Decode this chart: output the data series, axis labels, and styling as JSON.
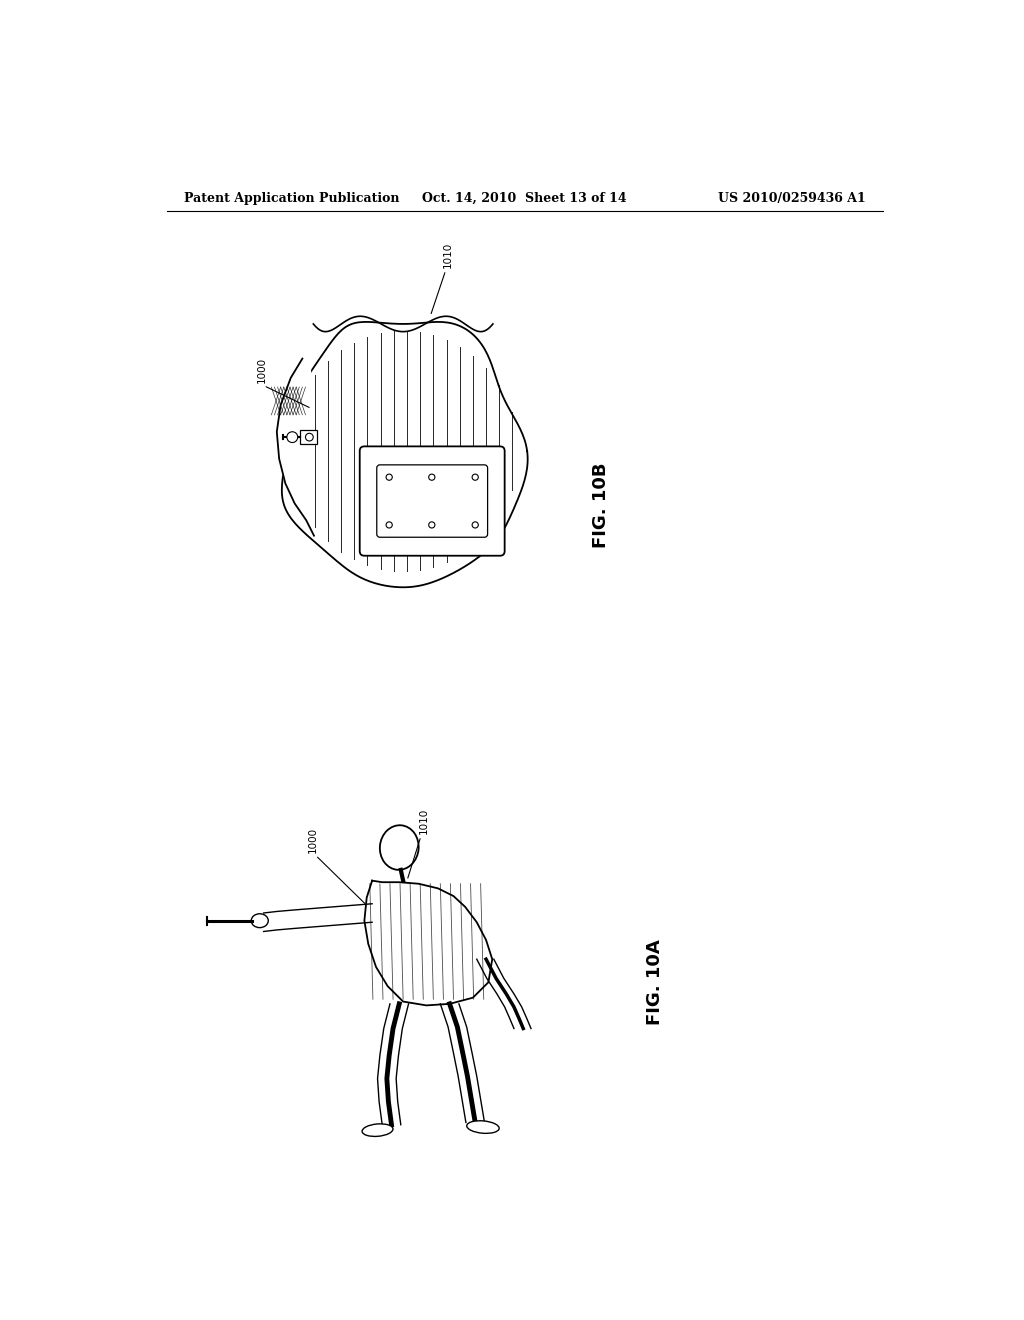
{
  "title_left": "Patent Application Publication",
  "title_center": "Oct. 14, 2010  Sheet 13 of 14",
  "title_right": "US 2010/0259436 A1",
  "fig_10b_label": "FIG. 10B",
  "fig_10a_label": "FIG. 10A",
  "label_1000_top": "1000",
  "label_1010_top": "1010",
  "label_1000_bottom": "1000",
  "label_1010_bottom": "1010",
  "bg_color": "#ffffff",
  "line_color": "#000000",
  "header_fontsize": 9,
  "fig_label_fontsize": 13,
  "callout_fontsize": 7.5,
  "fig_width": 10.24,
  "fig_height": 13.2
}
